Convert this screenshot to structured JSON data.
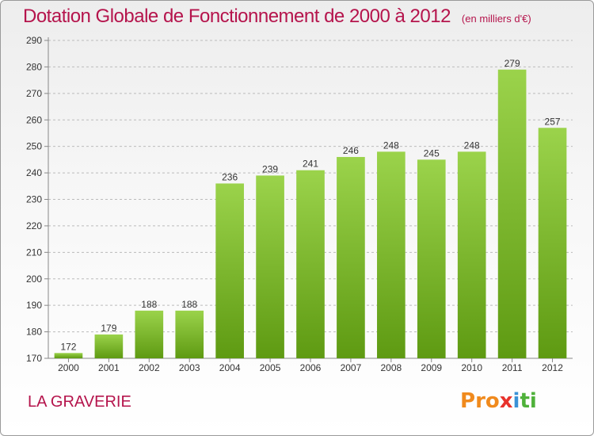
{
  "title": "Dotation Globale de Fonctionnement de 2000 à 2012",
  "subtitle": "(en milliers d'€)",
  "commune": "LA GRAVERIE",
  "logo": {
    "letters": [
      "P",
      "r",
      "o",
      "x",
      "i",
      "t",
      "i"
    ]
  },
  "colors": {
    "title": "#b5144c",
    "bar_top": "#9bd34b",
    "bar_bottom": "#5e9a12",
    "axis": "#888888",
    "grid": "#bbbbbb",
    "logo": [
      "#f08a1d",
      "#f08a1d",
      "#f08a1d",
      "#e8322c",
      "#3a92d6",
      "#4fb13a",
      "#4fb13a"
    ]
  },
  "chart_data": {
    "type": "bar",
    "title": "Dotation Globale de Fonctionnement de 2000 à 2012",
    "subtitle": "(en milliers d'€)",
    "categories": [
      "2000",
      "2001",
      "2002",
      "2003",
      "2004",
      "2005",
      "2006",
      "2007",
      "2008",
      "2009",
      "2010",
      "2011",
      "2012"
    ],
    "values": [
      172,
      179,
      188,
      188,
      236,
      239,
      241,
      246,
      248,
      245,
      248,
      279,
      257
    ],
    "xlabel": "",
    "ylabel": "",
    "ylim": [
      170,
      290
    ],
    "yticks": [
      170,
      180,
      190,
      200,
      210,
      220,
      230,
      240,
      250,
      260,
      270,
      280,
      290
    ],
    "grid": "dashed-horizontal",
    "legend": "none"
  }
}
